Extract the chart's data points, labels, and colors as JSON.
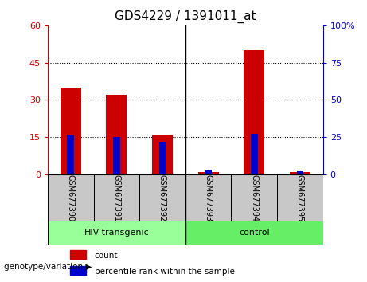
{
  "title": "GDS4229 / 1391011_at",
  "samples": [
    "GSM677390",
    "GSM677391",
    "GSM677392",
    "GSM677393",
    "GSM677394",
    "GSM677395"
  ],
  "count_values": [
    35,
    32,
    16,
    1,
    50,
    1
  ],
  "percentile_values": [
    26,
    25,
    22,
    3,
    27,
    2
  ],
  "left_ylim": [
    0,
    60
  ],
  "right_ylim": [
    0,
    100
  ],
  "left_yticks": [
    0,
    15,
    30,
    45,
    60
  ],
  "right_yticks": [
    0,
    25,
    50,
    75,
    100
  ],
  "right_yticklabels": [
    "0",
    "25",
    "50",
    "75",
    "100%"
  ],
  "grid_lines": [
    15,
    30,
    45
  ],
  "bar_color_count": "#cc0000",
  "bar_color_percentile": "#0000cc",
  "groups": [
    {
      "label": "HIV-transgenic",
      "indices": [
        0,
        1,
        2
      ],
      "color": "#99ff99"
    },
    {
      "label": "control",
      "indices": [
        3,
        4,
        5
      ],
      "color": "#66ee66"
    }
  ],
  "genotype_label": "genotype/variation",
  "legend_count": "count",
  "legend_percentile": "percentile rank within the sample",
  "title_fontsize": 11,
  "tick_fontsize": 8,
  "sample_tick_fontsize": 7
}
